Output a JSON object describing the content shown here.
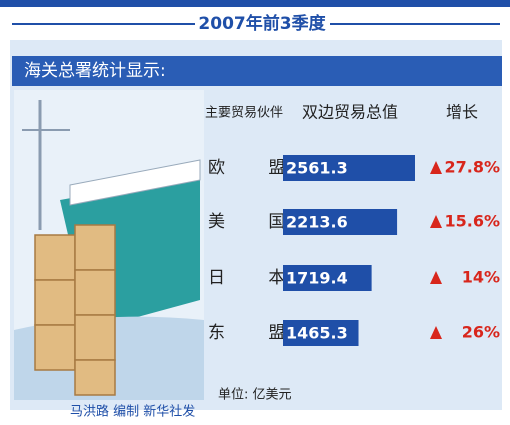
{
  "chart_data": {
    "type": "bar",
    "title": "2007年前3季度",
    "subtitle": "海关总署统计显示:",
    "column_headers": [
      "主要贸易伙伴",
      "双边贸易总值",
      "增长"
    ],
    "categories": [
      "欧 盟",
      "美 国",
      "日 本",
      "东 盟"
    ],
    "values": [
      2561.3,
      2213.6,
      1719.4,
      1465.3
    ],
    "color": "#1f4fa8",
    "growth": {
      "values": [
        27.8,
        15.6,
        14,
        26
      ],
      "value_labels": [
        "27.8%",
        "15.6%",
        "14%",
        "26%"
      ],
      "color": "#d8261c"
    },
    "unit_note": "单位: 亿美元",
    "credit": "马洪路 编制 新华社发"
  }
}
